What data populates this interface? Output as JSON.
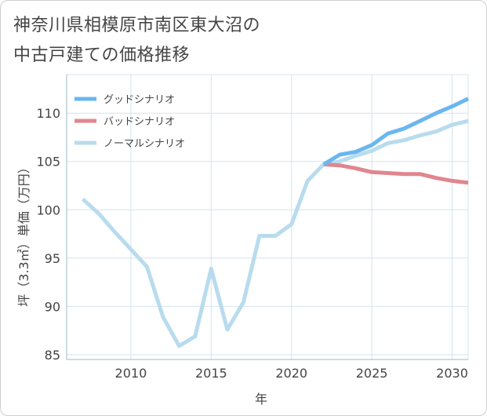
{
  "title": {
    "line1": "神奈川県相模原市南区東大沼の",
    "line2": "中古戸建ての価格推移"
  },
  "chart_data": {
    "type": "line",
    "title": "神奈川県相模原市南区東大沼の中古戸建ての価格推移",
    "xlabel": "年",
    "ylabel": "坪（3.3㎡）単価（万円）",
    "xlim": [
      2006,
      2031
    ],
    "ylim": [
      84.5,
      114
    ],
    "xticks": [
      2010,
      2015,
      2020,
      2025,
      2030
    ],
    "yticks": [
      85,
      90,
      95,
      100,
      105,
      110
    ],
    "grid": true,
    "legend_position": "top-left",
    "series": [
      {
        "name": "グッドシナリオ",
        "color": "#6ab7f0",
        "x": [
          2022,
          2023,
          2024,
          2025,
          2026,
          2027,
          2028,
          2029,
          2030,
          2031
        ],
        "values": [
          104.7,
          105.7,
          106.0,
          106.7,
          107.9,
          108.4,
          109.2,
          110.0,
          110.7,
          111.5
        ]
      },
      {
        "name": "バッドシナリオ",
        "color": "#e0868f",
        "x": [
          2022,
          2023,
          2024,
          2025,
          2026,
          2027,
          2028,
          2029,
          2030,
          2031
        ],
        "values": [
          104.7,
          104.6,
          104.3,
          103.9,
          103.8,
          103.7,
          103.7,
          103.3,
          103.0,
          102.8
        ]
      },
      {
        "name": "ノーマルシナリオ",
        "color": "#b8dcee",
        "x": [
          2007,
          2008,
          2009,
          2010,
          2011,
          2012,
          2013,
          2014,
          2015,
          2016,
          2017,
          2018,
          2019,
          2020,
          2021,
          2022,
          2023,
          2024,
          2025,
          2026,
          2027,
          2028,
          2029,
          2030,
          2031
        ],
        "values": [
          101.1,
          99.6,
          97.7,
          95.9,
          94.1,
          88.9,
          85.9,
          86.9,
          93.9,
          87.6,
          90.4,
          97.3,
          97.3,
          98.5,
          103.0,
          104.7,
          105.0,
          105.6,
          106.1,
          106.9,
          107.2,
          107.7,
          108.1,
          108.8,
          109.2
        ]
      }
    ]
  }
}
